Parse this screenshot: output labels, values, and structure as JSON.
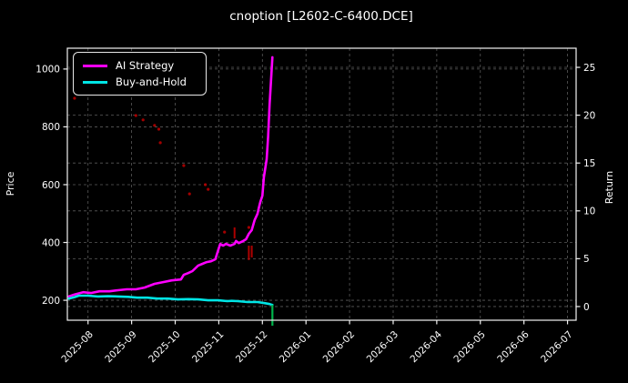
{
  "window": {
    "title": "cnoption [L2602-C-6400.DCE]"
  },
  "colors": {
    "background": "#000000",
    "text": "#ffffff",
    "grid": "#5a5a5a",
    "spine": "#f2f2f2",
    "ai_strategy": "#ff00ff",
    "buy_and_hold": "#00e5e5",
    "signal_red": "#c00000",
    "end_marker_green": "#00b44b"
  },
  "chart_data": {
    "type": "line",
    "title": "cnoption [L2602-C-6400.DCE]",
    "ylabel_left": "Price",
    "ylabel_right": "Return",
    "grid": true,
    "x_tick_labels": [
      "2025-08",
      "2025-09",
      "2025-10",
      "2025-11",
      "2025-12",
      "2026-01",
      "2026-02",
      "2026-03",
      "2026-04",
      "2026-05",
      "2026-06",
      "2026-07"
    ],
    "y_left_ticks": [
      200,
      400,
      600,
      800,
      1000
    ],
    "y_right_ticks": [
      0,
      5,
      10,
      15,
      20,
      25
    ],
    "xlim": [
      "2025-07-17",
      "2026-07-07"
    ],
    "ylim_left": [
      131,
      1072
    ],
    "ylim_right": [
      -1.43,
      27.0
    ],
    "legend": {
      "position": "upper-left",
      "entries": [
        {
          "label": "AI Strategy",
          "color": "#ff00ff"
        },
        {
          "label": "Buy-and-Hold",
          "color": "#00e5e5"
        }
      ]
    },
    "series": [
      {
        "name": "AI Strategy",
        "color": "#ff00ff",
        "axis": "left",
        "points": [
          [
            "2025-07-18",
            213
          ],
          [
            "2025-07-22",
            220
          ],
          [
            "2025-07-28",
            228
          ],
          [
            "2025-08-03",
            225
          ],
          [
            "2025-08-09",
            231
          ],
          [
            "2025-08-16",
            231
          ],
          [
            "2025-08-22",
            235
          ],
          [
            "2025-08-28",
            238
          ],
          [
            "2025-09-04",
            238
          ],
          [
            "2025-09-10",
            244
          ],
          [
            "2025-09-17",
            257
          ],
          [
            "2025-09-23",
            263
          ],
          [
            "2025-09-29",
            269
          ],
          [
            "2025-10-05",
            272
          ],
          [
            "2025-10-07",
            288
          ],
          [
            "2025-10-10",
            294
          ],
          [
            "2025-10-13",
            301
          ],
          [
            "2025-10-17",
            320
          ],
          [
            "2025-10-20",
            326
          ],
          [
            "2025-10-23",
            332
          ],
          [
            "2025-10-26",
            335
          ],
          [
            "2025-10-29",
            342
          ],
          [
            "2025-11-01",
            380
          ],
          [
            "2025-11-02",
            395
          ],
          [
            "2025-11-04",
            389
          ],
          [
            "2025-11-06",
            395
          ],
          [
            "2025-11-09",
            389
          ],
          [
            "2025-11-12",
            395
          ],
          [
            "2025-11-13",
            405
          ],
          [
            "2025-11-15",
            398
          ],
          [
            "2025-11-18",
            405
          ],
          [
            "2025-11-20",
            411
          ],
          [
            "2025-11-22",
            430
          ],
          [
            "2025-11-24",
            443
          ],
          [
            "2025-11-26",
            477
          ],
          [
            "2025-11-28",
            499
          ],
          [
            "2025-11-29",
            521
          ],
          [
            "2025-11-30",
            540
          ],
          [
            "2025-12-01",
            562
          ],
          [
            "2025-12-02",
            625
          ],
          [
            "2025-12-04",
            688
          ],
          [
            "2025-12-05",
            767
          ],
          [
            "2025-12-06",
            877
          ],
          [
            "2025-12-07",
            956
          ],
          [
            "2025-12-08",
            1041
          ]
        ]
      },
      {
        "name": "Buy-and-Hold",
        "color": "#00e5e5",
        "axis": "left",
        "points": [
          [
            "2025-07-18",
            206
          ],
          [
            "2025-07-22",
            211
          ],
          [
            "2025-07-25",
            216
          ],
          [
            "2025-08-01",
            216
          ],
          [
            "2025-08-08",
            213
          ],
          [
            "2025-08-15",
            214
          ],
          [
            "2025-08-22",
            213
          ],
          [
            "2025-08-29",
            212
          ],
          [
            "2025-09-05",
            209
          ],
          [
            "2025-09-12",
            209
          ],
          [
            "2025-09-19",
            206
          ],
          [
            "2025-09-26",
            206
          ],
          [
            "2025-10-03",
            203
          ],
          [
            "2025-10-10",
            204
          ],
          [
            "2025-10-17",
            203
          ],
          [
            "2025-10-24",
            200
          ],
          [
            "2025-10-31",
            200
          ],
          [
            "2025-11-07",
            197
          ],
          [
            "2025-11-10",
            198
          ],
          [
            "2025-11-14",
            197
          ],
          [
            "2025-11-21",
            194
          ],
          [
            "2025-11-28",
            194
          ],
          [
            "2025-12-03",
            190
          ],
          [
            "2025-12-06",
            187
          ],
          [
            "2025-12-08",
            184
          ]
        ]
      }
    ],
    "red_dots": [
      [
        "2025-07-22",
        899
      ],
      [
        "2025-09-04",
        839
      ],
      [
        "2025-09-09",
        824
      ],
      [
        "2025-09-17",
        805
      ],
      [
        "2025-09-20",
        792
      ],
      [
        "2025-09-21",
        745
      ],
      [
        "2025-10-07",
        666
      ],
      [
        "2025-10-11",
        568
      ],
      [
        "2025-10-22",
        600
      ],
      [
        "2025-10-24",
        584
      ],
      [
        "2025-11-05",
        436
      ],
      [
        "2025-11-22",
        452
      ]
    ],
    "red_dashes": [
      {
        "date": "2025-11-12",
        "price_from": 452,
        "price_to": 414
      },
      {
        "date": "2025-11-22",
        "price_from": 389,
        "price_to": 339
      },
      {
        "date": "2025-11-24",
        "price_from": 389,
        "price_to": 348
      }
    ],
    "green_end_line": {
      "date": "2025-12-08",
      "price_from": 184,
      "price_to": 112
    }
  }
}
